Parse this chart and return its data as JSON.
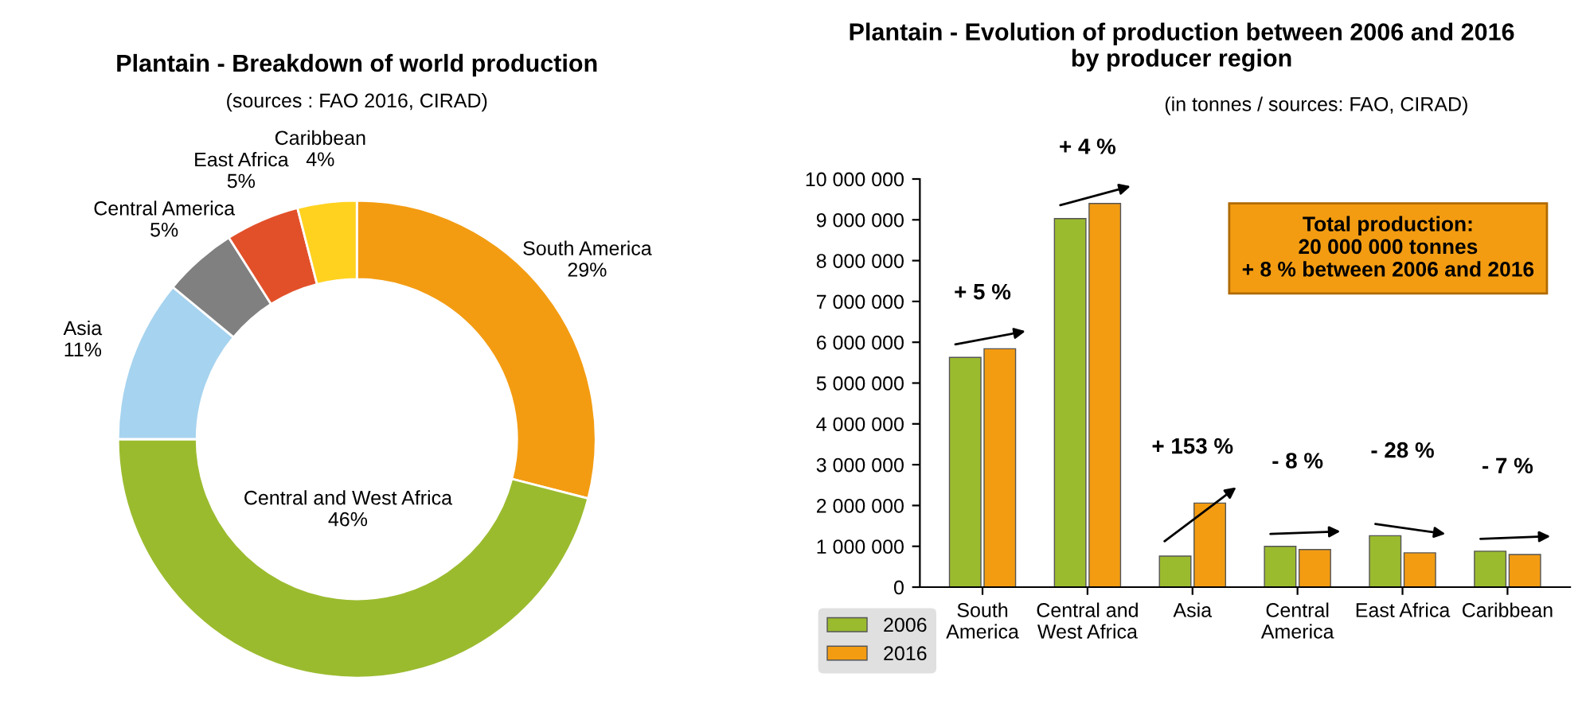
{
  "chart_data": [
    {
      "type": "donut",
      "title": "Plantain - Breakdown of world production",
      "subtitle": "(sources : FAO 2016, CIRAD)",
      "categories": [
        "South America",
        "Central and West Africa",
        "Asia",
        "Central America",
        "East Africa",
        "Caribbean"
      ],
      "values": [
        29,
        46,
        11,
        5,
        5,
        4
      ],
      "colors": [
        "#f39c12",
        "#9bbb2f",
        "#a6d3ef",
        "#808080",
        "#e2502a",
        "#ffd21f"
      ],
      "value_labels": [
        "29%",
        "46%",
        "11%",
        "5%",
        "5%",
        "4%"
      ],
      "legend": false
    },
    {
      "type": "bar",
      "title": "Plantain - Evolution of production between 2006 and 2016 by producer region",
      "subtitle": "(in tonnes / sources: FAO, CIRAD)",
      "categories": [
        "South America",
        "Central and West Africa",
        "Asia",
        "Central America",
        "East Africa",
        "Caribbean"
      ],
      "series": [
        {
          "name": "2006",
          "color": "#9bbb2f",
          "values": [
            5630000,
            9030000,
            760000,
            1000000,
            1260000,
            880000
          ]
        },
        {
          "name": "2016",
          "color": "#f39c12",
          "values": [
            5840000,
            9400000,
            2060000,
            920000,
            840000,
            800000
          ]
        }
      ],
      "ylim": [
        0,
        10000000
      ],
      "yticks": [
        {
          "value": 0,
          "label": "0"
        },
        {
          "value": 1000000,
          "label": "1 000 000"
        },
        {
          "value": 2000000,
          "label": "2 000 000"
        },
        {
          "value": 3000000,
          "label": "3 000 000"
        },
        {
          "value": 4000000,
          "label": "4 000 000"
        },
        {
          "value": 5000000,
          "label": "5 000 000"
        },
        {
          "value": 6000000,
          "label": "6 000 000"
        },
        {
          "value": 7000000,
          "label": "7 000 000"
        },
        {
          "value": 8000000,
          "label": "8 000 000"
        },
        {
          "value": 9000000,
          "label": "9 000 000"
        },
        {
          "value": 10000000,
          "label": "10 000 000"
        }
      ],
      "grid": false,
      "legend": "bottom left",
      "annotations": [
        "+ 5 %",
        "+ 4 %",
        "+ 153 %",
        "- 8 %",
        "- 28 %",
        "- 7 %",
        "Total production:\n20 000 000 tonnes\n+ 8 % between 2006 and 2016"
      ]
    }
  ]
}
